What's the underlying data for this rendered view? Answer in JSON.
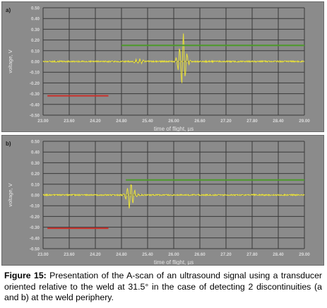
{
  "chart_data": [
    {
      "type": "line",
      "panel_label": "a)",
      "xlabel": "time of flight, µs",
      "ylabel": "voltage, V",
      "x_ticks": [
        "23.00",
        "23.60",
        "24.20",
        "24.80",
        "25.40",
        "26.00",
        "26.60",
        "27.20",
        "27.80",
        "28.40",
        "29.00"
      ],
      "y_ticks": [
        "0.50",
        "0.40",
        "0.30",
        "0.20",
        "0.10",
        "0.00",
        "-0.10",
        "-0.20",
        "-0.30",
        "-0.40",
        "-0.50"
      ],
      "xlim": [
        23.0,
        29.0
      ],
      "ylim": [
        -0.5,
        0.5
      ],
      "grid": true,
      "colors": {
        "signal": "#e8e03a",
        "gate": "#4c9a2a",
        "ref": "#c8302a",
        "background": "#8b8b8b",
        "grid": "#3a3a3a"
      },
      "gates": [
        {
          "color": "green",
          "x": [
            24.8,
            29.0
          ],
          "y": 0.15
        },
        {
          "color": "red",
          "x": [
            23.1,
            24.5
          ],
          "y": -0.32
        }
      ],
      "signal_events": [
        {
          "center": 25.2,
          "amplitude": 0.02
        },
        {
          "center": 26.2,
          "amplitude": 0.22
        }
      ],
      "baseline": 0.0
    },
    {
      "type": "line",
      "panel_label": "b)",
      "xlabel": "time of flight, µs",
      "ylabel": "voltage, V",
      "x_ticks": [
        "23.00",
        "23.60",
        "24.20",
        "24.80",
        "25.40",
        "26.00",
        "26.60",
        "27.20",
        "27.80",
        "28.40",
        "29.00"
      ],
      "y_ticks": [
        "0.50",
        "0.40",
        "0.30",
        "0.20",
        "0.10",
        "0.00",
        "-0.10",
        "-0.20",
        "-0.30",
        "-0.40",
        "-0.50"
      ],
      "xlim": [
        23.0,
        29.0
      ],
      "ylim": [
        -0.5,
        0.5
      ],
      "grid": true,
      "colors": {
        "signal": "#e8e03a",
        "gate": "#4c9a2a",
        "ref": "#c8302a",
        "background": "#8b8b8b",
        "grid": "#3a3a3a"
      },
      "gates": [
        {
          "color": "green",
          "x": [
            24.9,
            29.0
          ],
          "y": 0.14
        },
        {
          "color": "red",
          "x": [
            23.1,
            24.5
          ],
          "y": -0.31
        }
      ],
      "signal_events": [
        {
          "center": 25.0,
          "amplitude": 0.11
        }
      ],
      "baseline": 0.0
    }
  ],
  "caption": {
    "prefix": "Figure 15:",
    "text": " Presentation of the A-scan of an ultrasound signal using a transducer oriented relative to the weld at 31.5° in the case of detecting 2 discontinuities (a and b) at the weld periphery."
  }
}
